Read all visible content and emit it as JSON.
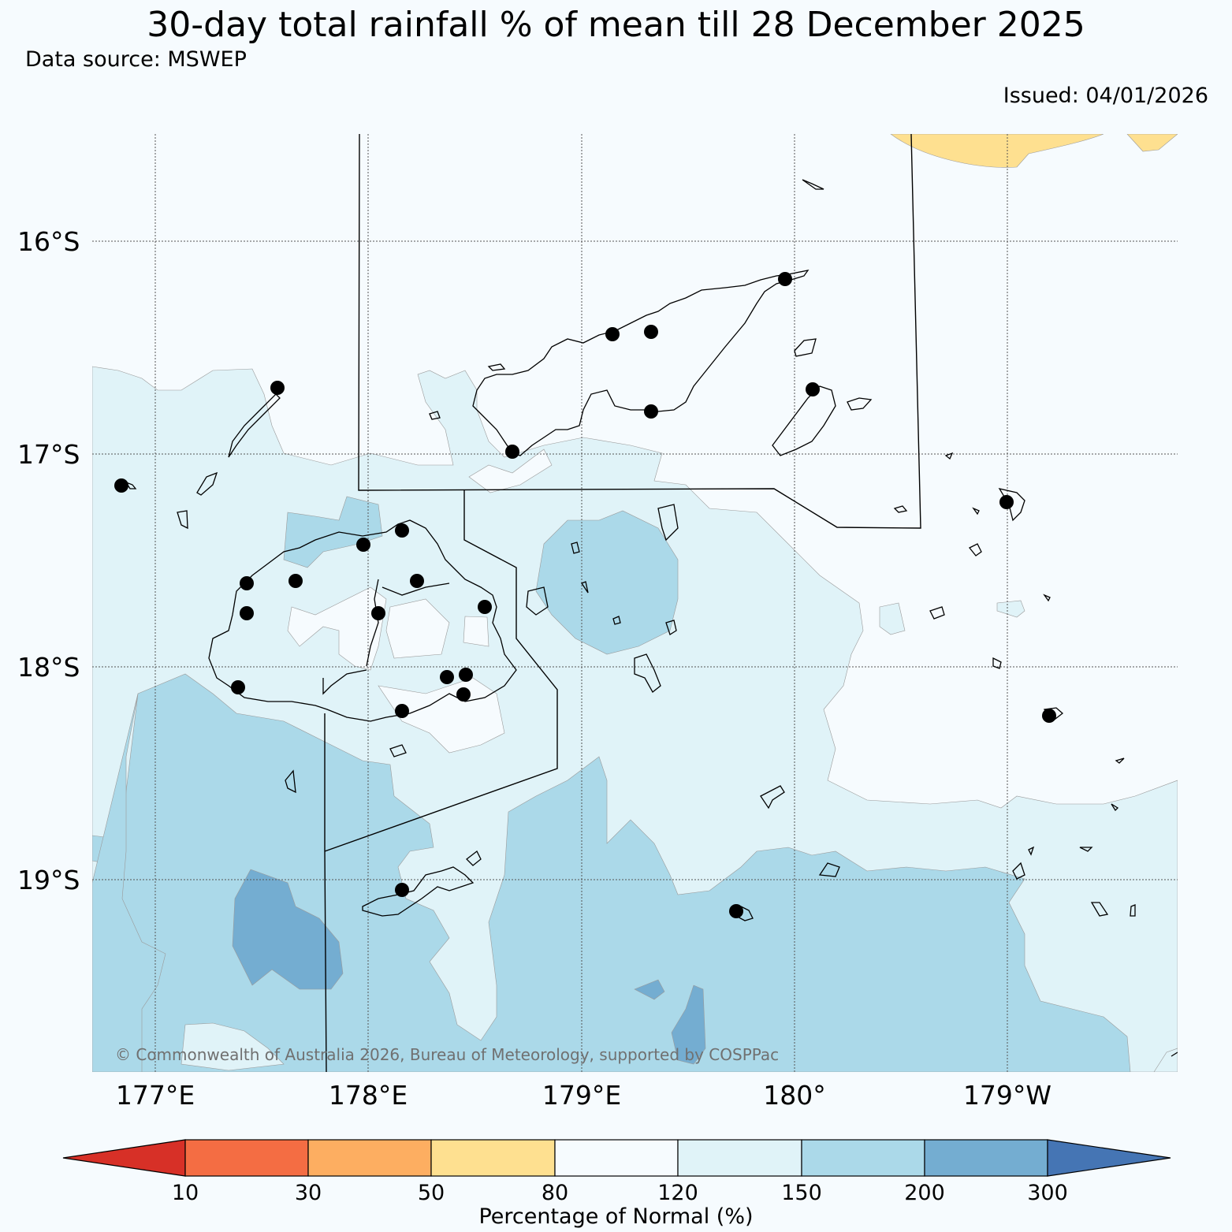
{
  "header": {
    "title": "30-day total rainfall % of mean till 28 December 2025",
    "source": "Data source: MSWEP",
    "issued": "Issued: 04/01/2026"
  },
  "axes": {
    "lat_labels": [
      "16°S",
      "17°S",
      "18°S",
      "19°S"
    ],
    "lon_labels": [
      "177°E",
      "178°E",
      "179°E",
      "180°",
      "179°W"
    ]
  },
  "colorbar": {
    "title": "Percentage of Normal (%)",
    "ticks": [
      "10",
      "30",
      "50",
      "80",
      "120",
      "150",
      "200",
      "300"
    ],
    "colors": {
      "below_10": "#d73027",
      "10_30": "#f46d43",
      "30_50": "#fdae61",
      "50_80": "#fee090",
      "80_120": "#f6fbfe",
      "120_150": "#e0f3f8",
      "150_200": "#abd9e9",
      "200_300": "#74add1",
      "above_300": "#4575b4"
    }
  },
  "copyright": "© Commonwealth of Australia 2026, Bureau of Meteorology, supported by COSPPac"
}
